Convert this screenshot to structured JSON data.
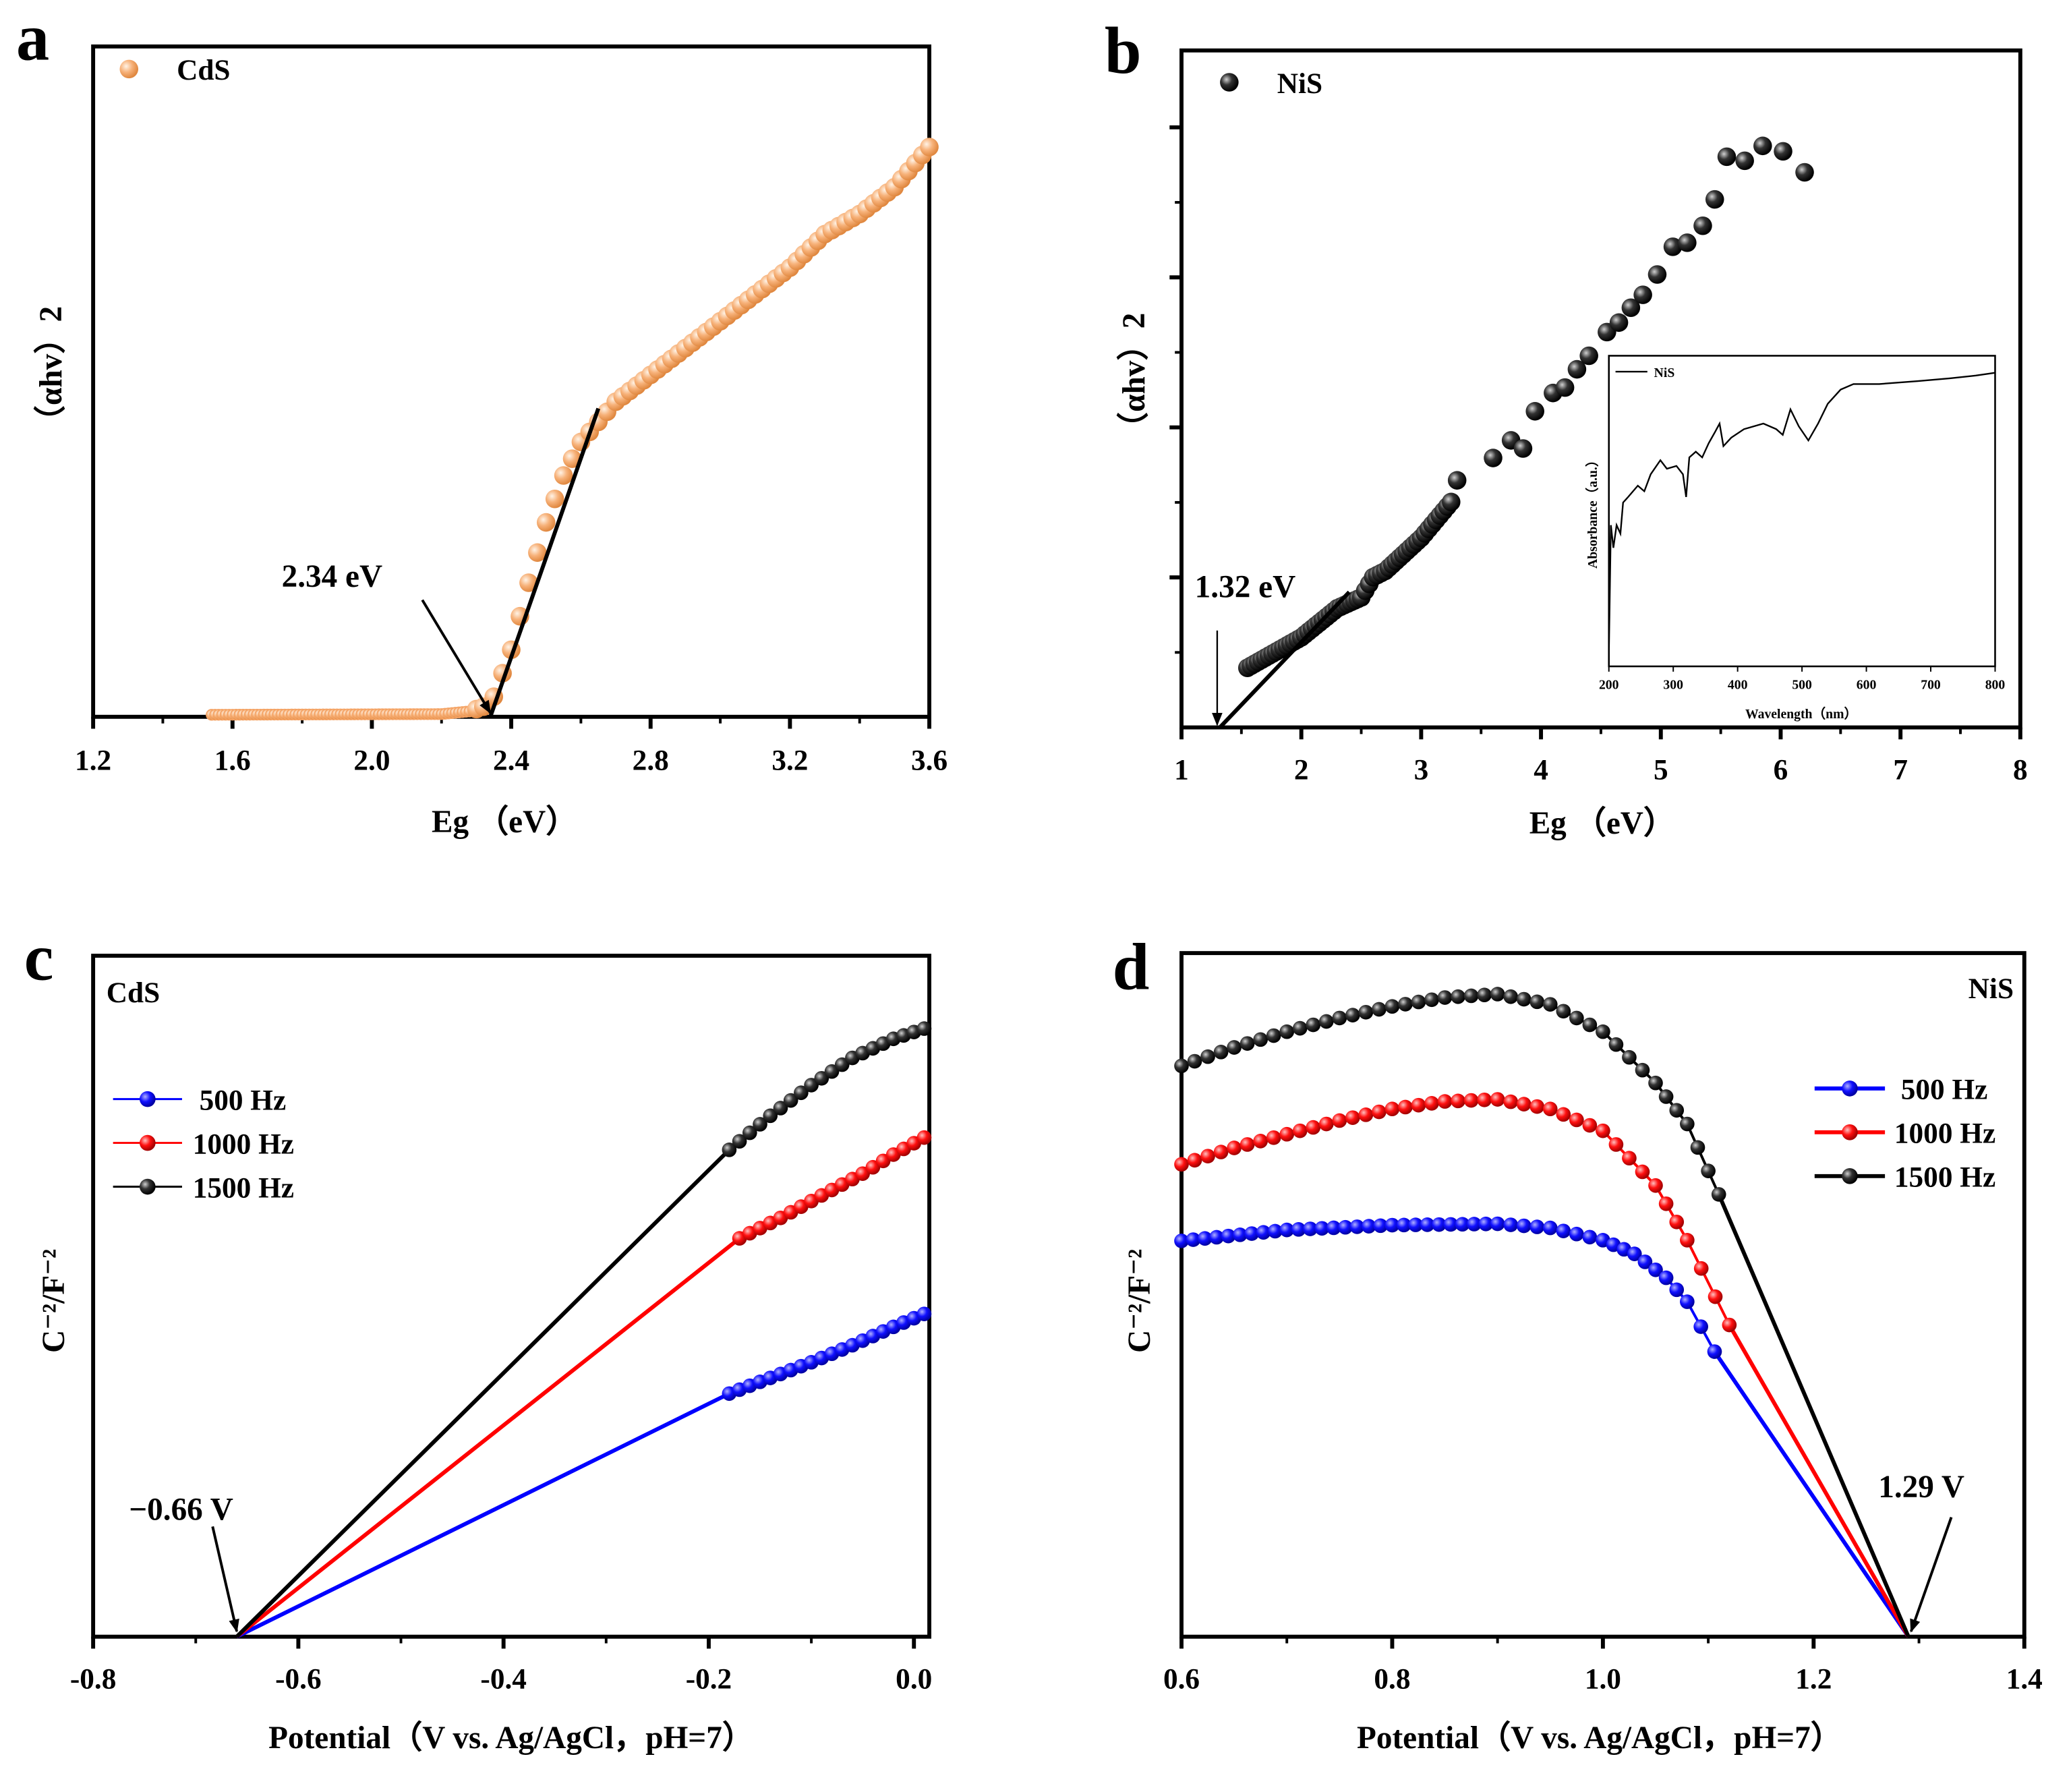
{
  "chart_data": [
    {
      "panel_label": "a",
      "type": "scatter",
      "xlabel": "Eg （eV）",
      "ylabel": "（αhv）2",
      "xlim": [
        1.2,
        3.6
      ],
      "ylim": [
        0,
        1
      ],
      "xticks": [
        "1.2",
        "1.6",
        "2.0",
        "2.4",
        "2.8",
        "3.2",
        "3.6"
      ],
      "grid": false,
      "legend_placement": "top-left",
      "series": [
        {
          "name": "CdS",
          "color": "#f4a263",
          "marker": "sphere",
          "points": [
            [
              1.54,
              0.003
            ],
            [
              2.2,
              0.004
            ],
            [
              2.28,
              0.008
            ],
            [
              2.32,
              0.015
            ],
            [
              2.35,
              0.03
            ],
            [
              2.4,
              0.1
            ],
            [
              2.45,
              0.2
            ],
            [
              2.5,
              0.29
            ],
            [
              2.55,
              0.36
            ],
            [
              2.6,
              0.41
            ],
            [
              2.65,
              0.44
            ],
            [
              2.7,
              0.47
            ],
            [
              2.8,
              0.51
            ],
            [
              2.9,
              0.55
            ],
            [
              3.0,
              0.59
            ],
            [
              3.1,
              0.63
            ],
            [
              3.2,
              0.67
            ],
            [
              3.3,
              0.72
            ],
            [
              3.4,
              0.75
            ],
            [
              3.5,
              0.79
            ],
            [
              3.6,
              0.85
            ]
          ]
        }
      ],
      "fit_line": {
        "from": [
          2.34,
          0
        ],
        "to": [
          2.65,
          0.46
        ]
      },
      "annotation": {
        "text": "2.34 eV",
        "x": 2.34
      }
    },
    {
      "panel_label": "b",
      "type": "scatter",
      "xlabel": "Eg （eV）",
      "ylabel": "（αhv）2",
      "xlim": [
        1,
        8
      ],
      "ylim": [
        0,
        1
      ],
      "xticks": [
        "1",
        "2",
        "3",
        "4",
        "5",
        "6",
        "7",
        "8"
      ],
      "grid": false,
      "legend_placement": "top-left",
      "series": [
        {
          "name": "NiS",
          "color": "#000000",
          "marker": "sphere",
          "points": [
            [
              1.55,
              0.088
            ],
            [
              2.0,
              0.133
            ],
            [
              2.3,
              0.176
            ],
            [
              2.5,
              0.192
            ],
            [
              2.6,
              0.222
            ],
            [
              2.7,
              0.231
            ],
            [
              3.0,
              0.28
            ],
            [
              3.25,
              0.333
            ],
            [
              3.3,
              0.365
            ],
            [
              3.6,
              0.398
            ],
            [
              3.75,
              0.424
            ],
            [
              3.85,
              0.412
            ],
            [
              3.95,
              0.467
            ],
            [
              4.1,
              0.494
            ],
            [
              4.2,
              0.502
            ],
            [
              4.3,
              0.529
            ],
            [
              4.4,
              0.549
            ],
            [
              4.55,
              0.584
            ],
            [
              4.65,
              0.598
            ],
            [
              4.75,
              0.62
            ],
            [
              4.85,
              0.639
            ],
            [
              4.97,
              0.669
            ],
            [
              5.1,
              0.71
            ],
            [
              5.22,
              0.716
            ],
            [
              5.35,
              0.741
            ],
            [
              5.45,
              0.78
            ],
            [
              5.55,
              0.843
            ],
            [
              5.7,
              0.837
            ],
            [
              5.85,
              0.859
            ],
            [
              6.02,
              0.851
            ],
            [
              6.2,
              0.82
            ]
          ]
        }
      ],
      "fit_line": {
        "from": [
          1.32,
          0
        ],
        "to": [
          2.4,
          0.2
        ]
      },
      "annotation": {
        "text": "1.32 eV",
        "x": 1.32
      },
      "inset": {
        "type": "line",
        "xlabel": "Wavelength（nm）",
        "ylabel": "Absorbance（a.u.）",
        "xlim": [
          200,
          800
        ],
        "ylim": [
          0,
          1.1
        ],
        "xticks": [
          "200",
          "300",
          "400",
          "500",
          "600",
          "700",
          "800"
        ],
        "legend_placement": "top-left",
        "series": [
          {
            "name": "NiS",
            "color": "#000000",
            "points": [
              [
                200,
                0.05
              ],
              [
                203,
                0.5
              ],
              [
                207,
                0.42
              ],
              [
                212,
                0.5
              ],
              [
                218,
                0.47
              ],
              [
                222,
                0.58
              ],
              [
                230,
                0.6
              ],
              [
                245,
                0.64
              ],
              [
                255,
                0.62
              ],
              [
                265,
                0.68
              ],
              [
                280,
                0.73
              ],
              [
                290,
                0.7
              ],
              [
                305,
                0.71
              ],
              [
                315,
                0.68
              ],
              [
                320,
                0.6
              ],
              [
                325,
                0.74
              ],
              [
                335,
                0.76
              ],
              [
                345,
                0.74
              ],
              [
                355,
                0.79
              ],
              [
                365,
                0.83
              ],
              [
                372,
                0.86
              ],
              [
                378,
                0.78
              ],
              [
                390,
                0.81
              ],
              [
                410,
                0.84
              ],
              [
                440,
                0.86
              ],
              [
                460,
                0.84
              ],
              [
                470,
                0.82
              ],
              [
                482,
                0.91
              ],
              [
                495,
                0.85
              ],
              [
                510,
                0.8
              ],
              [
                525,
                0.86
              ],
              [
                540,
                0.93
              ],
              [
                560,
                0.98
              ],
              [
                580,
                1.0
              ],
              [
                620,
                1.0
              ],
              [
                680,
                1.01
              ],
              [
                730,
                1.02
              ],
              [
                770,
                1.03
              ],
              [
                800,
                1.04
              ]
            ]
          }
        ]
      }
    },
    {
      "panel_label": "c",
      "type": "scatter",
      "title": "CdS",
      "xlabel": "Potential（V vs. Ag/AgCl，pH=7）",
      "ylabel": "C⁻²/F⁻²",
      "xlim": [
        -0.8,
        0.015
      ],
      "ylim": [
        0,
        1
      ],
      "xticks": [
        "-0.8",
        "-0.6",
        "-0.4",
        "-0.2",
        "0.0"
      ],
      "grid": false,
      "legend_placement": "center-left",
      "intercept": {
        "text": "−0.66 V",
        "x": -0.66
      },
      "series": [
        {
          "name": "500  Hz",
          "color": "#0000ff",
          "points": [
            [
              -0.18,
              0.357
            ],
            [
              -0.14,
              0.38
            ],
            [
              -0.1,
              0.403
            ],
            [
              -0.06,
              0.428
            ],
            [
              -0.02,
              0.455
            ],
            [
              0.01,
              0.474
            ]
          ]
        },
        {
          "name": "1000 Hz",
          "color": "#ff0000",
          "points": [
            [
              -0.17,
              0.585
            ],
            [
              -0.13,
              0.615
            ],
            [
              -0.09,
              0.648
            ],
            [
              -0.05,
              0.68
            ],
            [
              -0.02,
              0.708
            ],
            [
              0.01,
              0.733
            ]
          ]
        },
        {
          "name": "1500 Hz",
          "color": "#000000",
          "points": [
            [
              -0.18,
              0.715
            ],
            [
              -0.14,
              0.765
            ],
            [
              -0.1,
              0.81
            ],
            [
              -0.06,
              0.85
            ],
            [
              -0.02,
              0.878
            ],
            [
              0.01,
              0.893
            ]
          ]
        }
      ]
    },
    {
      "panel_label": "d",
      "type": "scatter",
      "title": "NiS",
      "xlabel": "Potential（V vs. Ag/AgCl，pH=7）",
      "ylabel": "C⁻²/F⁻²",
      "xlim": [
        0.6,
        1.4
      ],
      "ylim": [
        0,
        1
      ],
      "xticks": [
        "0.6",
        "0.8",
        "1.0",
        "1.2",
        "1.4"
      ],
      "grid": false,
      "legend_placement": "top-right",
      "intercept": {
        "text": "1.29 V",
        "x": 1.29
      },
      "series": [
        {
          "name": "500  Hz",
          "color": "#0000ff",
          "points": [
            [
              0.6,
              0.579
            ],
            [
              0.7,
              0.595
            ],
            [
              0.8,
              0.602
            ],
            [
              0.9,
              0.604
            ],
            [
              0.95,
              0.598
            ],
            [
              1.0,
              0.58
            ],
            [
              1.03,
              0.56
            ],
            [
              1.06,
              0.525
            ],
            [
              1.08,
              0.49
            ],
            [
              1.106,
              0.417
            ]
          ]
        },
        {
          "name": "1000 Hz",
          "color": "#ff0000",
          "points": [
            [
              0.6,
              0.691
            ],
            [
              0.65,
              0.715
            ],
            [
              0.7,
              0.735
            ],
            [
              0.75,
              0.755
            ],
            [
              0.8,
              0.772
            ],
            [
              0.85,
              0.783
            ],
            [
              0.9,
              0.786
            ],
            [
              0.95,
              0.772
            ],
            [
              1.0,
              0.74
            ],
            [
              1.05,
              0.66
            ],
            [
              1.08,
              0.58
            ],
            [
              1.12,
              0.456
            ]
          ]
        },
        {
          "name": "1500 Hz",
          "color": "#000000",
          "points": [
            [
              0.6,
              0.835
            ],
            [
              0.65,
              0.862
            ],
            [
              0.7,
              0.885
            ],
            [
              0.75,
              0.905
            ],
            [
              0.8,
              0.922
            ],
            [
              0.85,
              0.935
            ],
            [
              0.9,
              0.94
            ],
            [
              0.95,
              0.925
            ],
            [
              1.0,
              0.885
            ],
            [
              1.05,
              0.81
            ],
            [
              1.08,
              0.75
            ],
            [
              1.11,
              0.647
            ]
          ]
        }
      ]
    }
  ]
}
